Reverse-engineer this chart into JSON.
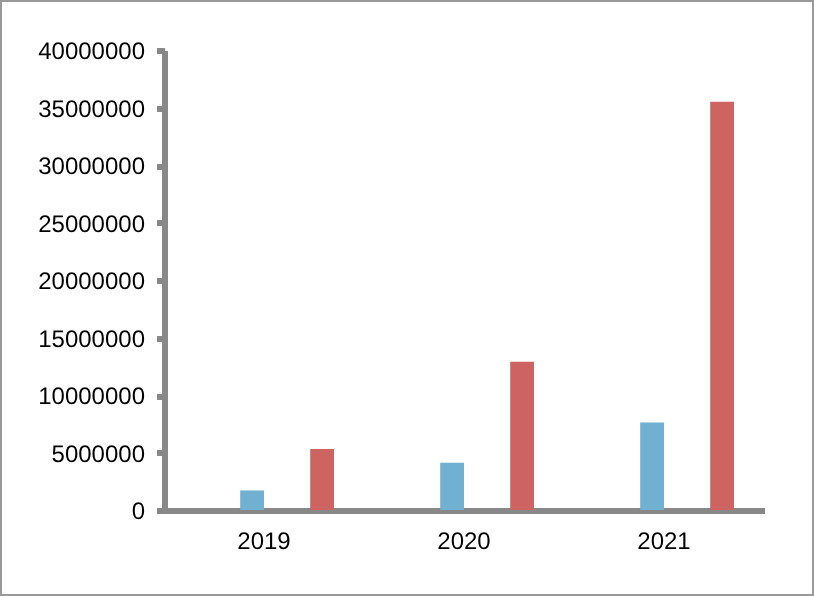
{
  "chart_data": {
    "type": "bar",
    "categories": [
      "2019",
      "2020",
      "2021"
    ],
    "series": [
      {
        "color": "#70b0d0",
        "values": [
          1700000,
          4100000,
          7600000
        ]
      },
      {
        "color": "#cd6462",
        "values": [
          5300000,
          12900000,
          35500000
        ]
      }
    ],
    "ylim": [
      0,
      40000000
    ],
    "yticks": [
      0,
      5000000,
      10000000,
      15000000,
      20000000,
      25000000,
      30000000,
      35000000,
      40000000
    ],
    "grid": false,
    "legend": false
  }
}
